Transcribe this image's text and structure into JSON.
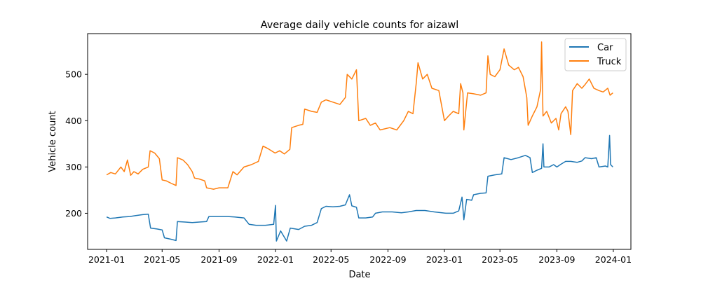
{
  "chart_data": {
    "type": "line",
    "title": "Average daily vehicle counts for aizawl",
    "xlabel": "Date",
    "ylabel": "Vehicle count",
    "x_ticks": [
      {
        "date": "2021-01-01",
        "label": "2021-01"
      },
      {
        "date": "2021-05-01",
        "label": "2021-05"
      },
      {
        "date": "2021-09-01",
        "label": "2021-09"
      },
      {
        "date": "2022-01-01",
        "label": "2022-01"
      },
      {
        "date": "2022-05-01",
        "label": "2022-05"
      },
      {
        "date": "2022-09-01",
        "label": "2022-09"
      },
      {
        "date": "2023-01-01",
        "label": "2023-01"
      },
      {
        "date": "2023-05-01",
        "label": "2023-05"
      },
      {
        "date": "2023-09-01",
        "label": "2023-09"
      },
      {
        "date": "2024-01-01",
        "label": "2024-01"
      }
    ],
    "y_ticks": [
      200,
      300,
      400,
      500
    ],
    "xlim": [
      "2020-11-21",
      "2024-02-08"
    ],
    "ylim": [
      122,
      588
    ],
    "grid": false,
    "legend_position": "top-right",
    "series": [
      {
        "name": "Car",
        "color": "#1f77b4",
        "points": [
          [
            "2021-01-01",
            192
          ],
          [
            "2021-01-08",
            189
          ],
          [
            "2021-01-20",
            190
          ],
          [
            "2021-02-05",
            192
          ],
          [
            "2021-02-20",
            193
          ],
          [
            "2021-03-05",
            195
          ],
          [
            "2021-03-20",
            197
          ],
          [
            "2021-04-01",
            198
          ],
          [
            "2021-04-06",
            168
          ],
          [
            "2021-04-20",
            166
          ],
          [
            "2021-05-01",
            164
          ],
          [
            "2021-05-06",
            147
          ],
          [
            "2021-05-20",
            144
          ],
          [
            "2021-05-31",
            141
          ],
          [
            "2021-06-03",
            182
          ],
          [
            "2021-06-20",
            181
          ],
          [
            "2021-07-05",
            180
          ],
          [
            "2021-07-20",
            181
          ],
          [
            "2021-08-05",
            182
          ],
          [
            "2021-08-10",
            193
          ],
          [
            "2021-09-01",
            193
          ],
          [
            "2021-09-20",
            193
          ],
          [
            "2021-10-05",
            192
          ],
          [
            "2021-10-25",
            190
          ],
          [
            "2021-11-05",
            176
          ],
          [
            "2021-11-20",
            174
          ],
          [
            "2021-12-10",
            174
          ],
          [
            "2021-12-28",
            176
          ],
          [
            "2022-01-01",
            217
          ],
          [
            "2022-01-03",
            140
          ],
          [
            "2022-01-12",
            162
          ],
          [
            "2022-01-25",
            140
          ],
          [
            "2022-02-02",
            168
          ],
          [
            "2022-02-20",
            165
          ],
          [
            "2022-03-05",
            172
          ],
          [
            "2022-03-20",
            174
          ],
          [
            "2022-04-01",
            180
          ],
          [
            "2022-04-10",
            210
          ],
          [
            "2022-04-20",
            215
          ],
          [
            "2022-05-05",
            214
          ],
          [
            "2022-05-20",
            215
          ],
          [
            "2022-06-01",
            218
          ],
          [
            "2022-06-10",
            240
          ],
          [
            "2022-06-15",
            216
          ],
          [
            "2022-06-25",
            213
          ],
          [
            "2022-06-30",
            190
          ],
          [
            "2022-07-15",
            190
          ],
          [
            "2022-07-30",
            192
          ],
          [
            "2022-08-05",
            200
          ],
          [
            "2022-08-20",
            203
          ],
          [
            "2022-09-10",
            203
          ],
          [
            "2022-09-30",
            201
          ],
          [
            "2022-10-15",
            203
          ],
          [
            "2022-11-01",
            206
          ],
          [
            "2022-11-20",
            206
          ],
          [
            "2022-12-10",
            203
          ],
          [
            "2023-01-05",
            200
          ],
          [
            "2023-01-20",
            200
          ],
          [
            "2023-02-01",
            205
          ],
          [
            "2023-02-08",
            235
          ],
          [
            "2023-02-12",
            186
          ],
          [
            "2023-02-18",
            230
          ],
          [
            "2023-03-01",
            228
          ],
          [
            "2023-03-05",
            240
          ],
          [
            "2023-03-20",
            243
          ],
          [
            "2023-04-01",
            244
          ],
          [
            "2023-04-05",
            280
          ],
          [
            "2023-04-20",
            283
          ],
          [
            "2023-05-05",
            285
          ],
          [
            "2023-05-10",
            320
          ],
          [
            "2023-05-25",
            316
          ],
          [
            "2023-06-10",
            320
          ],
          [
            "2023-06-25",
            325
          ],
          [
            "2023-07-05",
            320
          ],
          [
            "2023-07-10",
            288
          ],
          [
            "2023-07-20",
            293
          ],
          [
            "2023-07-30",
            297
          ],
          [
            "2023-08-02",
            350
          ],
          [
            "2023-08-04",
            300
          ],
          [
            "2023-08-15",
            300
          ],
          [
            "2023-08-25",
            305
          ],
          [
            "2023-09-01",
            300
          ],
          [
            "2023-09-10",
            306
          ],
          [
            "2023-09-20",
            312
          ],
          [
            "2023-10-01",
            312
          ],
          [
            "2023-10-15",
            310
          ],
          [
            "2023-10-25",
            313
          ],
          [
            "2023-11-01",
            320
          ],
          [
            "2023-11-15",
            318
          ],
          [
            "2023-11-25",
            320
          ],
          [
            "2023-12-01",
            300
          ],
          [
            "2023-12-15",
            302
          ],
          [
            "2023-12-20",
            300
          ],
          [
            "2023-12-24",
            368
          ],
          [
            "2023-12-26",
            305
          ],
          [
            "2023-12-31",
            300
          ]
        ]
      },
      {
        "name": "Truck",
        "color": "#ff7f0e",
        "points": [
          [
            "2021-01-01",
            283
          ],
          [
            "2021-01-10",
            288
          ],
          [
            "2021-01-20",
            285
          ],
          [
            "2021-02-01",
            300
          ],
          [
            "2021-02-08",
            290
          ],
          [
            "2021-02-15",
            315
          ],
          [
            "2021-02-22",
            282
          ],
          [
            "2021-03-01",
            290
          ],
          [
            "2021-03-10",
            285
          ],
          [
            "2021-03-20",
            295
          ],
          [
            "2021-04-01",
            300
          ],
          [
            "2021-04-05",
            335
          ],
          [
            "2021-04-15",
            330
          ],
          [
            "2021-04-25",
            318
          ],
          [
            "2021-05-01",
            272
          ],
          [
            "2021-05-10",
            270
          ],
          [
            "2021-05-20",
            265
          ],
          [
            "2021-05-31",
            260
          ],
          [
            "2021-06-03",
            320
          ],
          [
            "2021-06-15",
            315
          ],
          [
            "2021-06-25",
            305
          ],
          [
            "2021-07-05",
            290
          ],
          [
            "2021-07-10",
            276
          ],
          [
            "2021-07-20",
            274
          ],
          [
            "2021-08-01",
            270
          ],
          [
            "2021-08-05",
            255
          ],
          [
            "2021-08-20",
            252
          ],
          [
            "2021-09-01",
            255
          ],
          [
            "2021-09-20",
            255
          ],
          [
            "2021-10-01",
            290
          ],
          [
            "2021-10-10",
            283
          ],
          [
            "2021-10-25",
            300
          ],
          [
            "2021-11-10",
            305
          ],
          [
            "2021-11-25",
            312
          ],
          [
            "2021-12-05",
            345
          ],
          [
            "2021-12-15",
            340
          ],
          [
            "2021-12-31",
            330
          ],
          [
            "2022-01-10",
            335
          ],
          [
            "2022-01-20",
            328
          ],
          [
            "2022-02-01",
            338
          ],
          [
            "2022-02-05",
            385
          ],
          [
            "2022-02-20",
            390
          ],
          [
            "2022-03-01",
            392
          ],
          [
            "2022-03-05",
            425
          ],
          [
            "2022-03-20",
            420
          ],
          [
            "2022-04-01",
            418
          ],
          [
            "2022-04-10",
            440
          ],
          [
            "2022-04-20",
            445
          ],
          [
            "2022-05-05",
            440
          ],
          [
            "2022-05-20",
            435
          ],
          [
            "2022-06-01",
            450
          ],
          [
            "2022-06-05",
            500
          ],
          [
            "2022-06-15",
            490
          ],
          [
            "2022-06-25",
            510
          ],
          [
            "2022-06-30",
            400
          ],
          [
            "2022-07-15",
            405
          ],
          [
            "2022-07-25",
            390
          ],
          [
            "2022-08-05",
            395
          ],
          [
            "2022-08-15",
            380
          ],
          [
            "2022-09-05",
            385
          ],
          [
            "2022-09-20",
            380
          ],
          [
            "2022-10-05",
            400
          ],
          [
            "2022-10-15",
            420
          ],
          [
            "2022-10-25",
            415
          ],
          [
            "2022-11-01",
            480
          ],
          [
            "2022-11-05",
            525
          ],
          [
            "2022-11-15",
            490
          ],
          [
            "2022-11-25",
            500
          ],
          [
            "2022-12-05",
            470
          ],
          [
            "2022-12-20",
            465
          ],
          [
            "2023-01-01",
            400
          ],
          [
            "2023-01-10",
            410
          ],
          [
            "2023-01-20",
            420
          ],
          [
            "2023-02-01",
            415
          ],
          [
            "2023-02-05",
            480
          ],
          [
            "2023-02-10",
            460
          ],
          [
            "2023-02-12",
            380
          ],
          [
            "2023-02-20",
            460
          ],
          [
            "2023-03-05",
            458
          ],
          [
            "2023-03-20",
            455
          ],
          [
            "2023-04-01",
            460
          ],
          [
            "2023-04-05",
            540
          ],
          [
            "2023-04-10",
            500
          ],
          [
            "2023-04-20",
            495
          ],
          [
            "2023-05-01",
            510
          ],
          [
            "2023-05-10",
            555
          ],
          [
            "2023-05-20",
            520
          ],
          [
            "2023-06-01",
            510
          ],
          [
            "2023-06-10",
            515
          ],
          [
            "2023-06-20",
            495
          ],
          [
            "2023-06-28",
            450
          ],
          [
            "2023-07-01",
            390
          ],
          [
            "2023-07-10",
            410
          ],
          [
            "2023-07-20",
            430
          ],
          [
            "2023-07-28",
            468
          ],
          [
            "2023-07-30",
            570
          ],
          [
            "2023-08-02",
            410
          ],
          [
            "2023-08-10",
            420
          ],
          [
            "2023-08-20",
            395
          ],
          [
            "2023-08-30",
            405
          ],
          [
            "2023-09-05",
            380
          ],
          [
            "2023-09-10",
            415
          ],
          [
            "2023-09-20",
            430
          ],
          [
            "2023-09-25",
            420
          ],
          [
            "2023-10-01",
            370
          ],
          [
            "2023-10-05",
            465
          ],
          [
            "2023-10-15",
            480
          ],
          [
            "2023-10-25",
            470
          ],
          [
            "2023-11-01",
            478
          ],
          [
            "2023-11-10",
            490
          ],
          [
            "2023-11-20",
            470
          ],
          [
            "2023-12-01",
            465
          ],
          [
            "2023-12-10",
            462
          ],
          [
            "2023-12-20",
            470
          ],
          [
            "2023-12-25",
            455
          ],
          [
            "2023-12-31",
            460
          ]
        ]
      }
    ]
  }
}
